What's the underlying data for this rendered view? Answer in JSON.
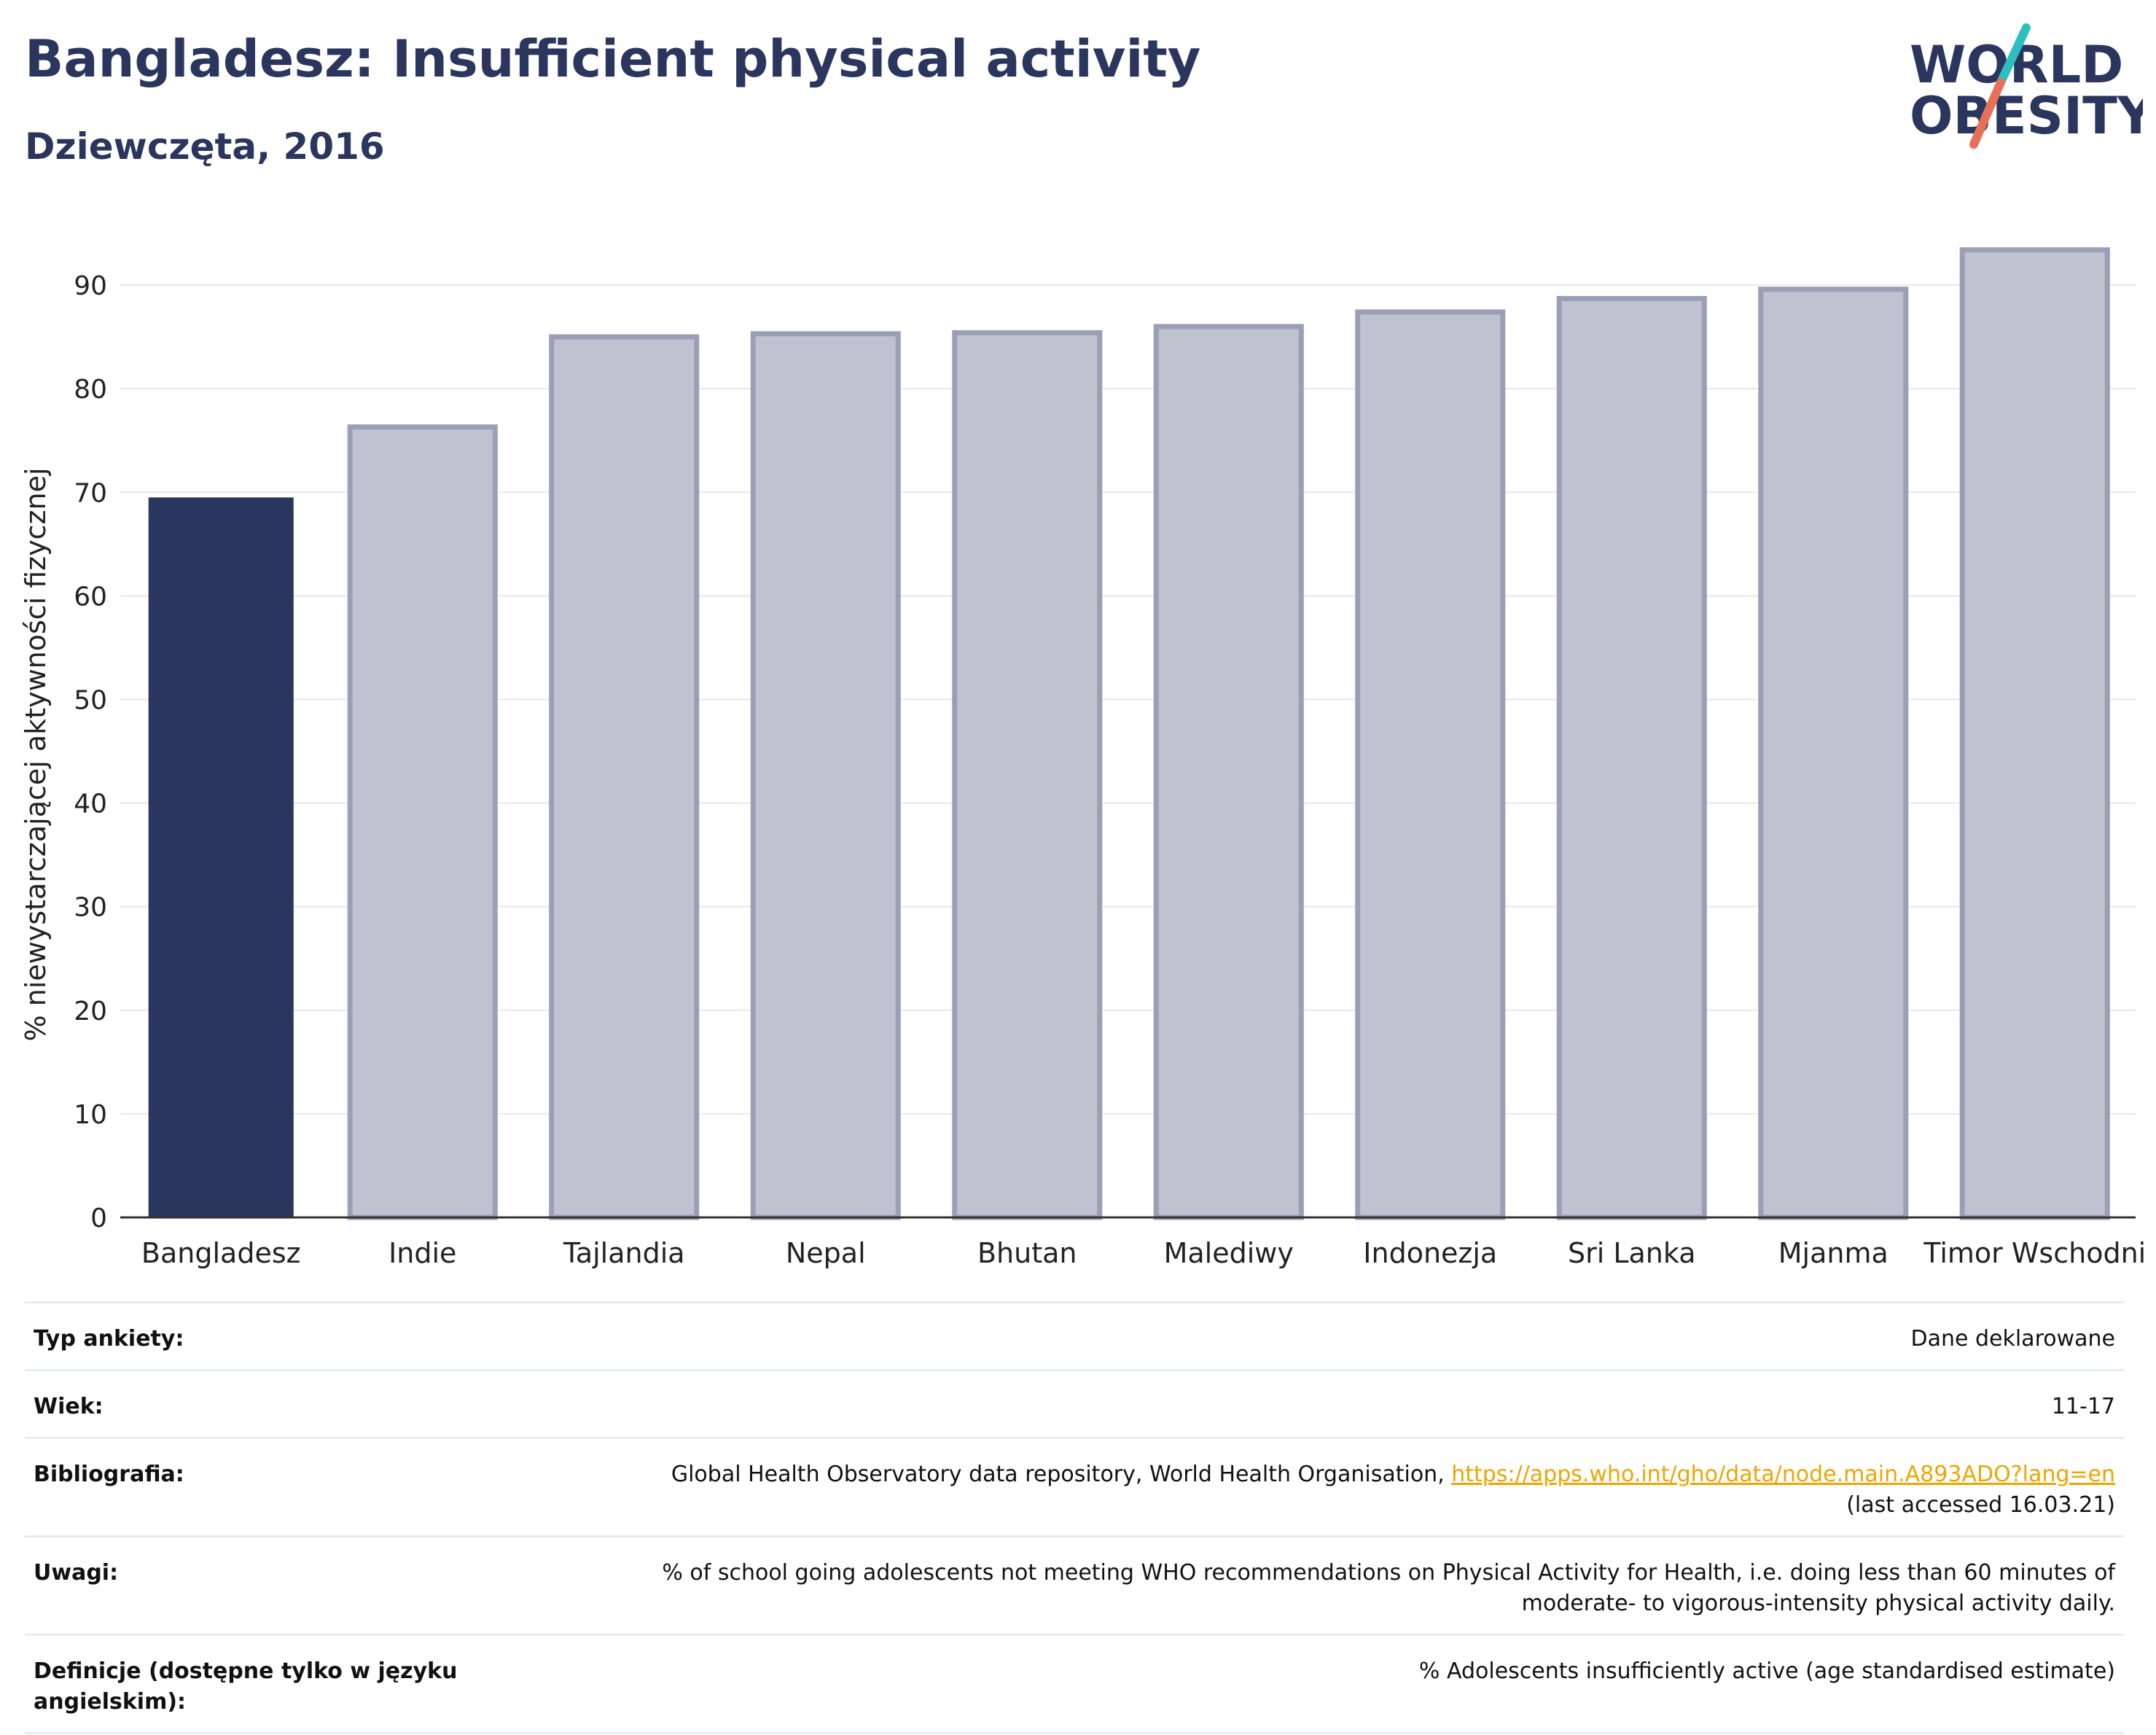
{
  "header": {
    "title": "Bangladesz: Insufficient physical activity",
    "subtitle": "Dziewczęta, 2016"
  },
  "logo": {
    "line1": "WORLD",
    "line2": "OBESITY",
    "colors": {
      "text": "#2b365f",
      "slash_top": "#2bbfbf",
      "slash_bottom": "#e8705a"
    }
  },
  "colors": {
    "highlight_bar": "#2b365f",
    "other_bar_fill": "#bfc2cf",
    "other_bar_stroke": "#9a9fb5",
    "grid": "#e6e8ee",
    "axis": "#333333"
  },
  "chart_data": {
    "type": "bar",
    "title": "Bangladesz: Insufficient physical activity",
    "subtitle": "Dziewczęta, 2016",
    "xlabel": "",
    "ylabel": "% niewystarczającej aktywności fizycznej",
    "categories": [
      "Bangladesz",
      "Indie",
      "Tajlandia",
      "Nepal",
      "Bhutan",
      "Malediwy",
      "Indonezja",
      "Sri Lanka",
      "Mjanma",
      "Timor Wschodni"
    ],
    "values": [
      69.5,
      76.3,
      85.0,
      85.3,
      85.4,
      86.0,
      87.4,
      88.7,
      89.6,
      93.4
    ],
    "highlight": "Bangladesz",
    "ylim": [
      0,
      95
    ],
    "yticks": [
      0,
      10,
      20,
      30,
      40,
      50,
      60,
      70,
      80,
      90
    ],
    "grid": true,
    "legend": "none"
  },
  "info": [
    {
      "label": "Typ ankiety:",
      "value": "Dane deklarowane"
    },
    {
      "label": "Wiek:",
      "value": "11-17"
    },
    {
      "label": "Bibliografia:",
      "value": "Global Health Observatory data repository, World Health Organisation, ",
      "link": "https://apps.who.int/gho/data/node.main.A893ADO?lang=en",
      "value2": "(last accessed 16.03.21)"
    },
    {
      "label": "Uwagi:",
      "value": "% of school going adolescents not meeting WHO recommendations on Physical Activity for Health, i.e. doing less than 60 minutes of",
      "value2": "moderate- to vigorous-intensity physical activity daily."
    },
    {
      "label": "Definicje (dostępne tylko w języku angielskim):",
      "value": "% Adolescents insufficiently active (age standardised estimate)"
    }
  ]
}
